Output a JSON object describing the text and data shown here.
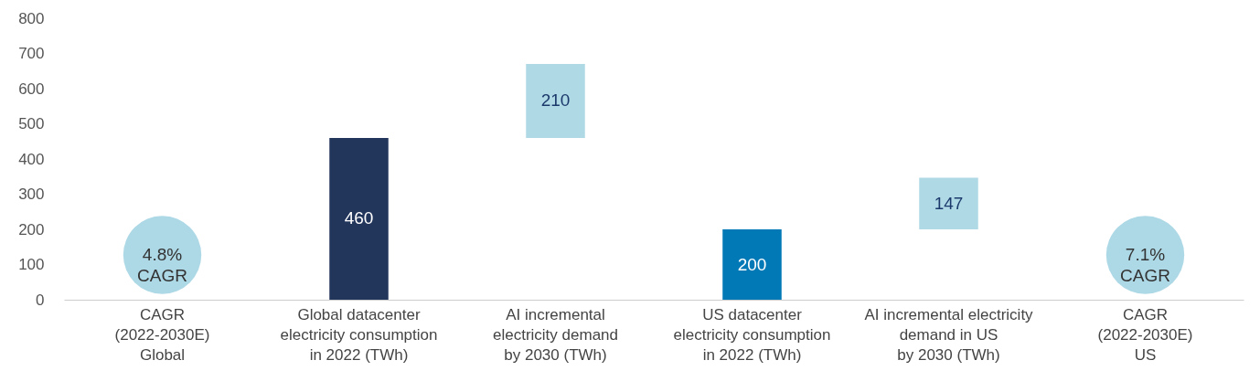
{
  "chart_data": {
    "type": "bar",
    "categories": [
      "CAGR\n(2022-2030E)\nGlobal",
      "Global datacenter\nelectricity consumption\nin 2022 (TWh)",
      "AI incremental\nelectricity demand\nby 2030 (TWh)",
      "US datacenter\nelectricity consumption\nin 2022 (TWh)",
      "AI incremental electricity\ndemand in US\nby 2030 (TWh)",
      "CAGR\n(2022-2030E)\nUS"
    ],
    "values": [
      null,
      460,
      210,
      200,
      147,
      null
    ],
    "base": [
      null,
      0,
      460,
      0,
      200,
      null
    ],
    "colors": [
      "#add8e6",
      "#22355b",
      "#b0d9e6",
      "#0079b6",
      "#b0d9e6",
      "#add8e6"
    ],
    "data_labels": true,
    "ylim": [
      0,
      800
    ],
    "yticks": [
      0,
      100,
      200,
      300,
      400,
      500,
      600,
      700,
      800
    ],
    "grid": false,
    "annotations": [
      "4.8%\nCAGR",
      "7.1%\nCAGR"
    ]
  }
}
